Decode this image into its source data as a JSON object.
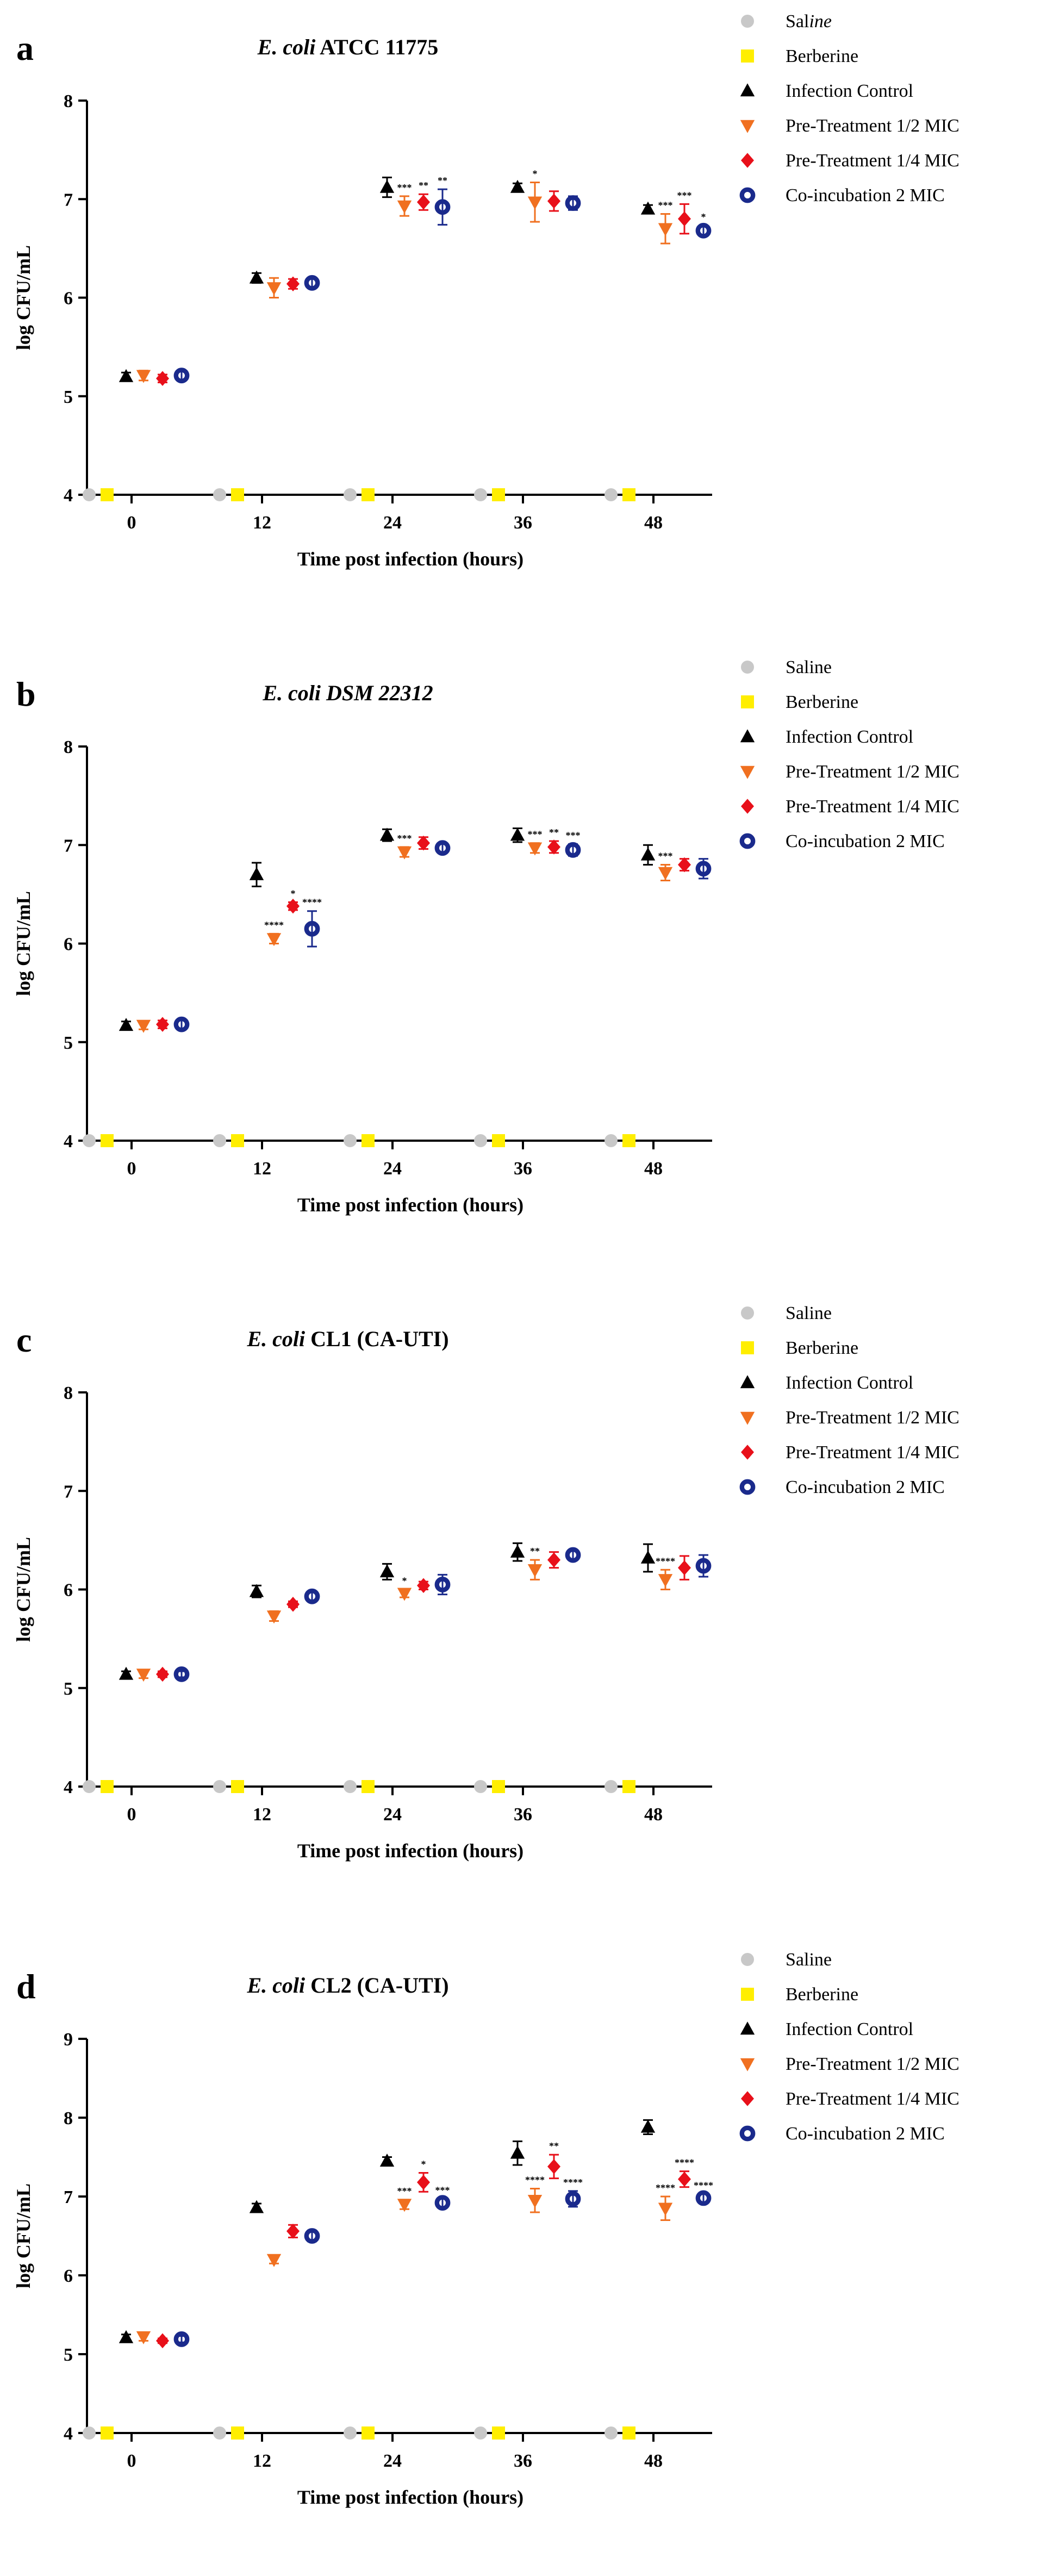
{
  "chart_data": [
    {
      "type": "scatter",
      "panel": "a",
      "title_italic": "E. coli",
      "title_rest": " ATCC 11775",
      "xlabel": "Time post infection (hours)",
      "ylabel": "log CFU/mL",
      "ylim": [
        4,
        8
      ],
      "yticks": [
        4,
        5,
        6,
        7,
        8
      ],
      "categories": [
        "0",
        "12",
        "24",
        "36",
        "48"
      ],
      "series": [
        {
          "name": "Saline",
          "label_plain": "Sal",
          "label_italic": "ine",
          "values": [
            4,
            4,
            4,
            4,
            4
          ],
          "err": [
            0,
            0,
            0,
            0,
            0
          ],
          "stars": [
            "",
            "",
            "",
            "",
            ""
          ]
        },
        {
          "name": "Berberine",
          "values": [
            4,
            4,
            4,
            4,
            4
          ],
          "err": [
            0,
            0,
            0,
            0,
            0
          ],
          "stars": [
            "",
            "",
            "",
            "",
            ""
          ]
        },
        {
          "name": "Infection Control",
          "values": [
            5.2,
            6.2,
            7.12,
            7.12,
            6.9
          ],
          "err": [
            0.04,
            0.05,
            0.1,
            0.04,
            0.04
          ],
          "stars": [
            "",
            "",
            "",
            "",
            ""
          ]
        },
        {
          "name": "Pre-Treatment 1/2 MIC",
          "values": [
            5.21,
            6.1,
            6.93,
            6.97,
            6.7
          ],
          "err": [
            0.05,
            0.1,
            0.1,
            0.2,
            0.15
          ],
          "stars": [
            "",
            "",
            "***",
            "*",
            "***"
          ]
        },
        {
          "name": "Pre-Treatment 1/4 MIC",
          "values": [
            5.18,
            6.14,
            6.97,
            6.98,
            6.8
          ],
          "err": [
            0.04,
            0.05,
            0.08,
            0.1,
            0.15
          ],
          "stars": [
            "",
            "",
            "**",
            "",
            "***"
          ]
        },
        {
          "name": "Co-incubation 2 MIC",
          "values": [
            5.21,
            6.15,
            6.92,
            6.96,
            6.68
          ],
          "err": [
            0.04,
            0.04,
            0.18,
            0.07,
            0.05
          ],
          "stars": [
            "",
            "",
            "**",
            "",
            "*"
          ]
        }
      ]
    },
    {
      "type": "scatter",
      "panel": "b",
      "title_italic": "E. coli DSM 22312",
      "title_rest": "",
      "xlabel": "Time post infection (hours)",
      "ylabel": "log CFU/mL",
      "ylim": [
        4,
        8
      ],
      "yticks": [
        4,
        5,
        6,
        7,
        8
      ],
      "categories": [
        "0",
        "12",
        "24",
        "36",
        "48"
      ],
      "series": [
        {
          "name": "Saline",
          "values": [
            4,
            4,
            4,
            4,
            4
          ],
          "err": [
            0,
            0,
            0,
            0,
            0
          ],
          "stars": [
            "",
            "",
            "",
            "",
            ""
          ]
        },
        {
          "name": "Berberine",
          "values": [
            4,
            4,
            4,
            4,
            4
          ],
          "err": [
            0,
            0,
            0,
            0,
            0
          ],
          "stars": [
            "",
            "",
            "",
            "",
            ""
          ]
        },
        {
          "name": "Infection Control",
          "values": [
            5.17,
            6.7,
            7.1,
            7.1,
            6.9
          ],
          "err": [
            0.04,
            0.12,
            0.06,
            0.07,
            0.1
          ],
          "stars": [
            "",
            "",
            "",
            "",
            ""
          ]
        },
        {
          "name": "Pre-Treatment 1/2 MIC",
          "values": [
            5.17,
            6.05,
            6.93,
            6.97,
            6.72
          ],
          "err": [
            0.04,
            0.05,
            0.05,
            0.05,
            0.08
          ],
          "stars": [
            "",
            "****",
            "***",
            "***",
            "***"
          ]
        },
        {
          "name": "Pre-Treatment 1/4 MIC",
          "values": [
            5.18,
            6.38,
            7.02,
            6.98,
            6.8
          ],
          "err": [
            0.04,
            0.04,
            0.06,
            0.06,
            0.06
          ],
          "stars": [
            "",
            "*",
            "",
            "**",
            ""
          ]
        },
        {
          "name": "Co-incubation 2 MIC",
          "values": [
            5.18,
            6.15,
            6.97,
            6.95,
            6.76
          ],
          "err": [
            0.04,
            0.18,
            0.04,
            0.06,
            0.1
          ],
          "stars": [
            "",
            "****",
            "",
            "***",
            ""
          ]
        }
      ]
    },
    {
      "type": "scatter",
      "panel": "c",
      "title_italic": "E. coli",
      "title_rest": " CL1 (CA-UTI)",
      "xlabel": "Time post infection (hours)",
      "ylabel": "log CFU/mL",
      "ylim": [
        4,
        8
      ],
      "yticks": [
        4,
        5,
        6,
        7,
        8
      ],
      "categories": [
        "0",
        "12",
        "24",
        "36",
        "48"
      ],
      "series": [
        {
          "name": "Saline",
          "values": [
            4,
            4,
            4,
            4,
            4
          ],
          "err": [
            0,
            0,
            0,
            0,
            0
          ],
          "stars": [
            "",
            "",
            "",
            "",
            ""
          ]
        },
        {
          "name": "Berberine",
          "values": [
            4,
            4,
            4,
            4,
            4
          ],
          "err": [
            0,
            0,
            0,
            0,
            0
          ],
          "stars": [
            "",
            "",
            "",
            "",
            ""
          ]
        },
        {
          "name": "Infection Control",
          "values": [
            5.14,
            5.98,
            6.18,
            6.38,
            6.32
          ],
          "err": [
            0.03,
            0.06,
            0.08,
            0.09,
            0.14
          ],
          "stars": [
            "",
            "",
            "",
            "",
            ""
          ]
        },
        {
          "name": "Pre-Treatment 1/2 MIC",
          "values": [
            5.14,
            5.73,
            5.96,
            6.2,
            6.1
          ],
          "err": [
            0.04,
            0.05,
            0.04,
            0.1,
            0.1
          ],
          "stars": [
            "",
            "",
            "*",
            "**",
            "****"
          ]
        },
        {
          "name": "Pre-Treatment 1/4 MIC",
          "values": [
            5.14,
            5.85,
            6.04,
            6.3,
            6.22
          ],
          "err": [
            0.03,
            0.03,
            0.04,
            0.08,
            0.12
          ],
          "stars": [
            "",
            "",
            "",
            "",
            ""
          ]
        },
        {
          "name": "Co-incubation 2 MIC",
          "values": [
            5.14,
            5.93,
            6.05,
            6.35,
            6.24
          ],
          "err": [
            0.03,
            0.04,
            0.1,
            0.04,
            0.11
          ],
          "stars": [
            "",
            "",
            "",
            "",
            ""
          ]
        }
      ]
    },
    {
      "type": "scatter",
      "panel": "d",
      "title_italic": "E. coli",
      "title_rest": " CL2 (CA-UTI)",
      "xlabel": "Time post infection (hours)",
      "ylabel": "log CFU/mL",
      "ylim": [
        4,
        9
      ],
      "yticks": [
        4,
        5,
        6,
        7,
        8,
        9
      ],
      "categories": [
        "0",
        "12",
        "24",
        "36",
        "48"
      ],
      "series": [
        {
          "name": "Saline",
          "values": [
            4,
            4,
            4,
            4,
            4
          ],
          "err": [
            0,
            0,
            0,
            0,
            0
          ],
          "stars": [
            "",
            "",
            "",
            "",
            ""
          ]
        },
        {
          "name": "Berberine",
          "values": [
            4,
            4,
            4,
            4,
            4
          ],
          "err": [
            0,
            0,
            0,
            0,
            0
          ],
          "stars": [
            "",
            "",
            "",
            "",
            ""
          ]
        },
        {
          "name": "Infection Control",
          "values": [
            5.21,
            6.86,
            7.45,
            7.55,
            7.88
          ],
          "err": [
            0.04,
            0.05,
            0.05,
            0.15,
            0.09
          ],
          "stars": [
            "",
            "",
            "",
            "",
            ""
          ]
        },
        {
          "name": "Pre-Treatment 1/2 MIC",
          "values": [
            5.22,
            6.2,
            6.9,
            6.95,
            6.85
          ],
          "err": [
            0.05,
            0.05,
            0.06,
            0.15,
            0.15
          ],
          "stars": [
            "",
            "",
            "***",
            "****",
            "****"
          ]
        },
        {
          "name": "Pre-Treatment 1/4 MIC",
          "values": [
            5.17,
            6.56,
            7.18,
            7.38,
            7.22
          ],
          "err": [
            0.03,
            0.08,
            0.12,
            0.15,
            0.1
          ],
          "stars": [
            "",
            "",
            "*",
            "**",
            "****"
          ]
        },
        {
          "name": "Co-incubation 2 MIC",
          "values": [
            5.19,
            6.5,
            6.92,
            6.97,
            6.98
          ],
          "err": [
            0.04,
            0.07,
            0.05,
            0.1,
            0.05
          ],
          "stars": [
            "",
            "",
            "***",
            "****",
            "****"
          ]
        }
      ]
    }
  ],
  "colors": {
    "saline": "#c8c8c8",
    "berberine": "#ffee00",
    "infection_control": "#000000",
    "pre_half": "#f07020",
    "pre_quarter": "#e8101a",
    "co_incubation": "#1a2a8c"
  }
}
